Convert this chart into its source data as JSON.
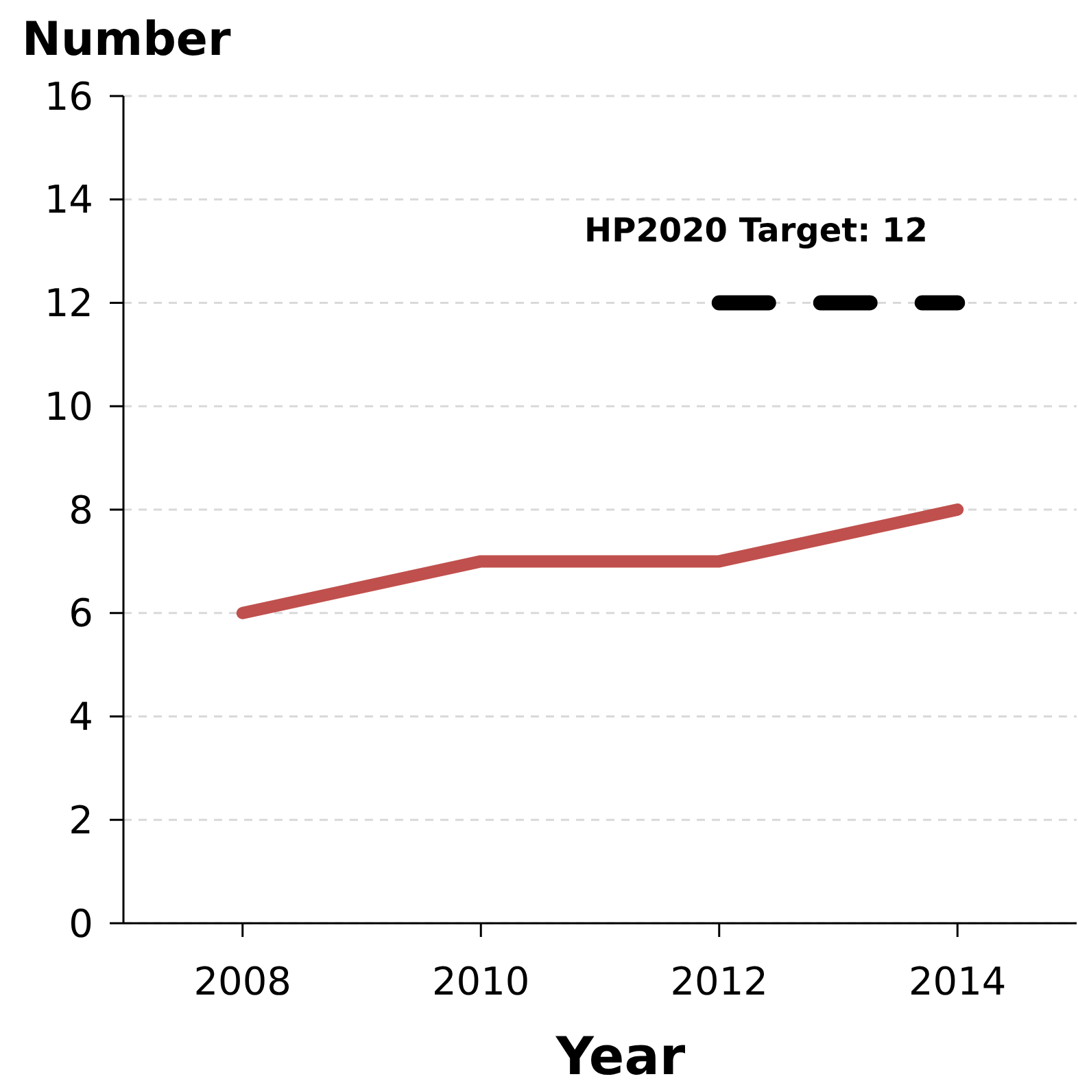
{
  "chart_data": {
    "type": "line",
    "ylabel": "Number",
    "xlabel": "Year",
    "x": [
      2008,
      2010,
      2012,
      2014
    ],
    "series": [
      {
        "color": "#c0504d",
        "values": [
          6,
          7,
          7,
          8
        ],
        "line_style": "solid"
      },
      {
        "color": "#000000",
        "x": [
          2012,
          2014
        ],
        "values": [
          12,
          12
        ],
        "line_style": "dashed"
      }
    ],
    "annotations": [
      {
        "text": "HP2020 Target: 12",
        "x": 2013,
        "y": 12
      }
    ],
    "xlim": [
      2007,
      2015
    ],
    "xticks": [
      2008,
      2010,
      2012,
      2014
    ],
    "ylim": [
      0,
      16
    ],
    "yticks": [
      0,
      2,
      4,
      6,
      8,
      10,
      12,
      14,
      16
    ],
    "grid": "y",
    "marker": "none"
  }
}
